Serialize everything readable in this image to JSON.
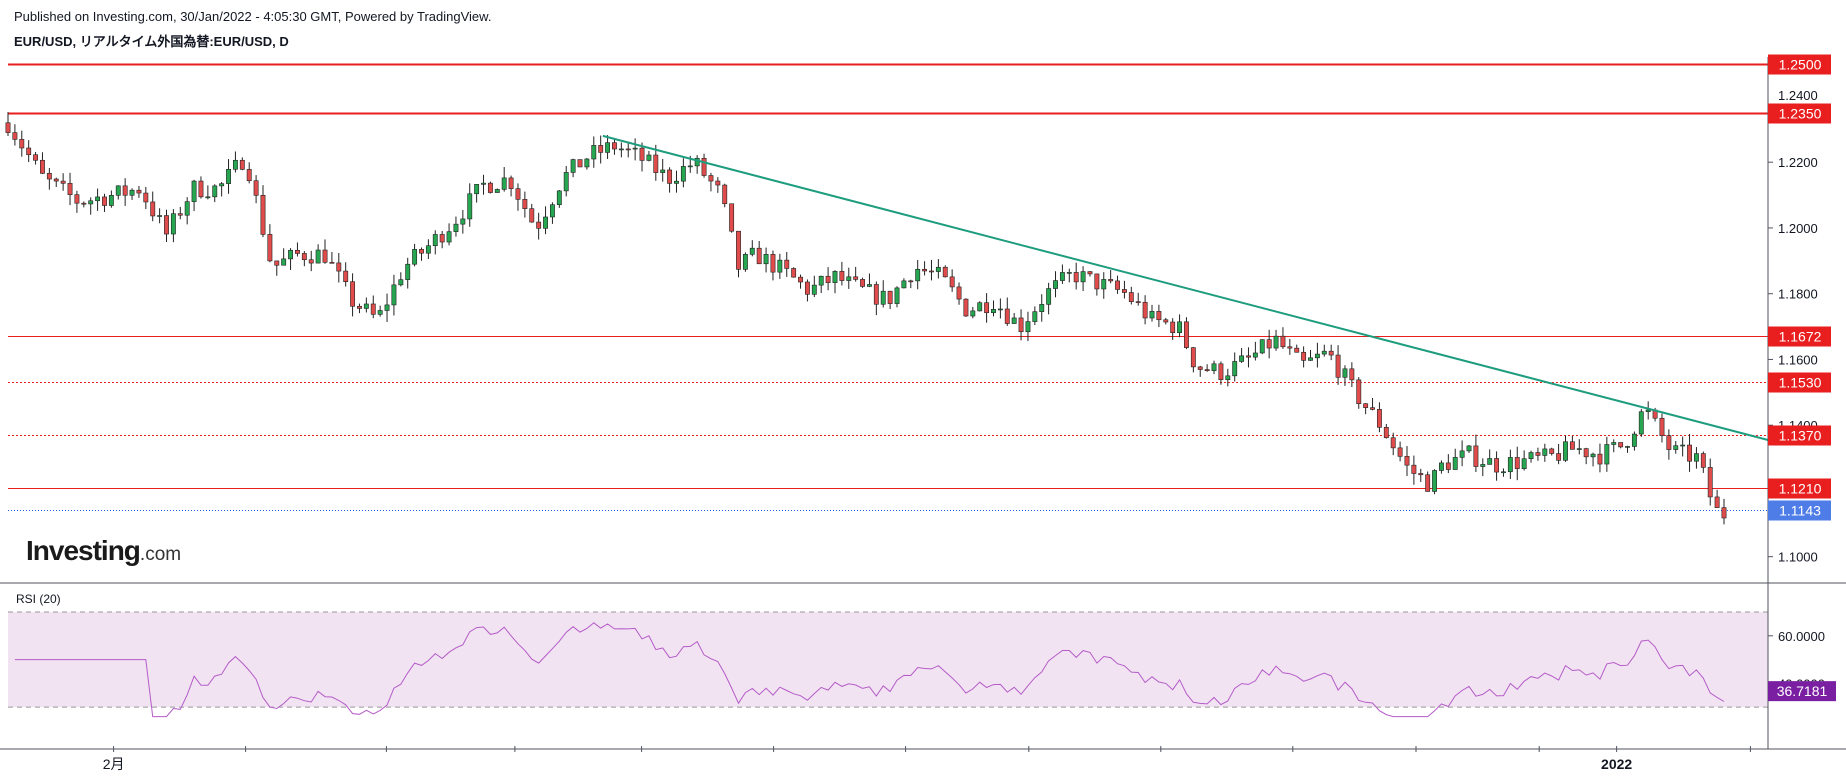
{
  "header": {
    "published": "Published on Investing.com, 30/Jan/2022 - 4:05:30 GMT, Powered by TradingView.",
    "symbol": "EUR/USD, リアルタイム外国為替:EUR/USD, D"
  },
  "logo": {
    "main": "Investing",
    "suffix": ".com"
  },
  "chart_data": {
    "type": "candlestick",
    "title": "EUR/USD, リアルタイム外国為替:EUR/USD, D",
    "price_axis": {
      "ylim": [
        1.092,
        1.252
      ],
      "ticks": [
        {
          "v": 1.22,
          "label": "1.2200"
        },
        {
          "v": 1.2,
          "label": "1.2000"
        },
        {
          "v": 1.18,
          "label": "1.1800"
        },
        {
          "v": 1.16,
          "label": "1.1600"
        },
        {
          "v": 1.14,
          "label": "1.1400"
        },
        {
          "v": 1.1,
          "label": "1.1000"
        }
      ],
      "top_partial_labels": [
        "1.2500",
        "1.2400"
      ]
    },
    "x_axis": {
      "labels": [
        {
          "pos": 0.06,
          "text": "2月"
        },
        {
          "pos": 0.914,
          "text": "2022"
        }
      ],
      "tick_positions": [
        0.06,
        0.135,
        0.215,
        0.288,
        0.36,
        0.435,
        0.51,
        0.58,
        0.655,
        0.73,
        0.8,
        0.87,
        0.914,
        0.99
      ]
    },
    "horizontal_levels": [
      {
        "price": 1.25,
        "label": "1.2500",
        "style": "solid",
        "color": "#e91e1e"
      },
      {
        "price": 1.235,
        "label": "1.2350",
        "style": "solid",
        "color": "#e91e1e"
      },
      {
        "price": 1.1672,
        "label": "1.1672",
        "style": "solid",
        "color": "#e91e1e"
      },
      {
        "price": 1.153,
        "label": "1.1530",
        "style": "dotted",
        "color": "#e91e1e"
      },
      {
        "price": 1.137,
        "label": "1.1370",
        "style": "dotted",
        "color": "#e91e1e"
      },
      {
        "price": 1.121,
        "label": "1.1210",
        "style": "solid",
        "color": "#e91e1e"
      }
    ],
    "last_price": {
      "price": 1.1143,
      "label": "1.1143",
      "color": "#2962ff"
    },
    "trendline": {
      "from": {
        "t": 0.338,
        "price": 1.228
      },
      "to": {
        "t": 1.0,
        "price": 1.1355
      },
      "color": "#1e9c7e"
    },
    "waypoints": [
      [
        0.0,
        1.232
      ],
      [
        0.02,
        1.215
      ],
      [
        0.04,
        1.208
      ],
      [
        0.06,
        1.21
      ],
      [
        0.075,
        1.212
      ],
      [
        0.09,
        1.198
      ],
      [
        0.105,
        1.212
      ],
      [
        0.12,
        1.212
      ],
      [
        0.135,
        1.222
      ],
      [
        0.15,
        1.188
      ],
      [
        0.165,
        1.192
      ],
      [
        0.18,
        1.192
      ],
      [
        0.195,
        1.178
      ],
      [
        0.21,
        1.172
      ],
      [
        0.225,
        1.188
      ],
      [
        0.24,
        1.195
      ],
      [
        0.255,
        1.203
      ],
      [
        0.27,
        1.213
      ],
      [
        0.285,
        1.215
      ],
      [
        0.3,
        1.2
      ],
      [
        0.315,
        1.215
      ],
      [
        0.33,
        1.222
      ],
      [
        0.345,
        1.225
      ],
      [
        0.36,
        1.221
      ],
      [
        0.375,
        1.215
      ],
      [
        0.39,
        1.22
      ],
      [
        0.405,
        1.21
      ],
      [
        0.415,
        1.188
      ],
      [
        0.425,
        1.192
      ],
      [
        0.44,
        1.187
      ],
      [
        0.455,
        1.181
      ],
      [
        0.47,
        1.185
      ],
      [
        0.485,
        1.181
      ],
      [
        0.5,
        1.178
      ],
      [
        0.515,
        1.188
      ],
      [
        0.53,
        1.185
      ],
      [
        0.545,
        1.175
      ],
      [
        0.56,
        1.178
      ],
      [
        0.575,
        1.17
      ],
      [
        0.59,
        1.18
      ],
      [
        0.605,
        1.186
      ],
      [
        0.62,
        1.183
      ],
      [
        0.635,
        1.18
      ],
      [
        0.65,
        1.172
      ],
      [
        0.665,
        1.17
      ],
      [
        0.675,
        1.158
      ],
      [
        0.69,
        1.156
      ],
      [
        0.705,
        1.16
      ],
      [
        0.72,
        1.166
      ],
      [
        0.735,
        1.158
      ],
      [
        0.75,
        1.162
      ],
      [
        0.765,
        1.15
      ],
      [
        0.78,
        1.14
      ],
      [
        0.795,
        1.127
      ],
      [
        0.808,
        1.122
      ],
      [
        0.815,
        1.128
      ],
      [
        0.83,
        1.131
      ],
      [
        0.845,
        1.128
      ],
      [
        0.86,
        1.129
      ],
      [
        0.875,
        1.13
      ],
      [
        0.89,
        1.133
      ],
      [
        0.905,
        1.131
      ],
      [
        0.918,
        1.134
      ],
      [
        0.93,
        1.145
      ],
      [
        0.945,
        1.132
      ],
      [
        0.96,
        1.13
      ],
      [
        0.97,
        1.114
      ],
      [
        0.975,
        1.113
      ]
    ],
    "candle_count": 250,
    "rsi": {
      "label": "RSI (20)",
      "ylim": [
        25,
        78
      ],
      "levels": [
        70,
        30
      ],
      "ticks": [
        {
          "v": 60,
          "label": "60.0000"
        },
        {
          "v": 40,
          "label": "40.0000"
        }
      ],
      "last": {
        "value": 36.7181,
        "label": "36.7181",
        "color": "#7b1fa2"
      },
      "line_color": "#b45cc8",
      "fill_color": "#f2e3f2"
    }
  }
}
